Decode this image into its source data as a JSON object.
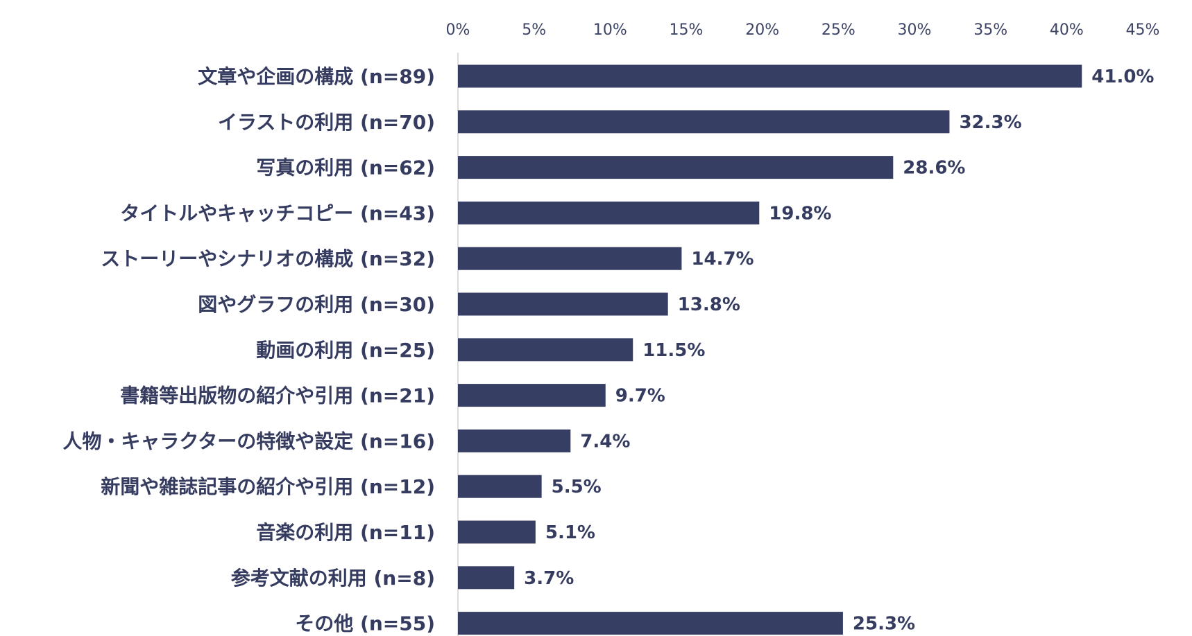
{
  "chart_data": {
    "type": "bar",
    "orientation": "horizontal",
    "categories": [
      "文章や企画の構成 (n=89)",
      "イラストの利用 (n=70)",
      "写真の利用 (n=62)",
      "タイトルやキャッチコピー (n=43)",
      "ストーリーやシナリオの構成 (n=32)",
      "図やグラフの利用 (n=30)",
      "動画の利用 (n=25)",
      "書籍等出版物の紹介や引用 (n=21)",
      "人物・キャラクターの特徴や設定 (n=16)",
      "新聞や雑誌記事の紹介や引用 (n=12)",
      "音楽の利用 (n=11)",
      "参考文献の利用 (n=8)",
      "その他 (n=55)"
    ],
    "values": [
      41.0,
      32.3,
      28.6,
      19.8,
      14.7,
      13.8,
      11.5,
      9.7,
      7.4,
      5.5,
      5.1,
      3.7,
      25.3
    ],
    "value_labels": [
      "41.0%",
      "32.3%",
      "28.6%",
      "19.8%",
      "14.7%",
      "13.8%",
      "11.5%",
      "9.7%",
      "7.4%",
      "5.5%",
      "5.1%",
      "3.7%",
      "25.3%"
    ],
    "xlim": [
      0,
      45
    ],
    "x_ticks": [
      0,
      5,
      10,
      15,
      20,
      25,
      30,
      35,
      40,
      45
    ],
    "x_tick_labels": [
      "0%",
      "5%",
      "10%",
      "15%",
      "20%",
      "25%",
      "30%",
      "35%",
      "40%",
      "45%"
    ],
    "x_axis_position": "top",
    "grid": false,
    "legend": "none",
    "title": "",
    "xlabel": "",
    "ylabel": "",
    "bar_color": "#373e63",
    "text_color": "#353c60"
  }
}
